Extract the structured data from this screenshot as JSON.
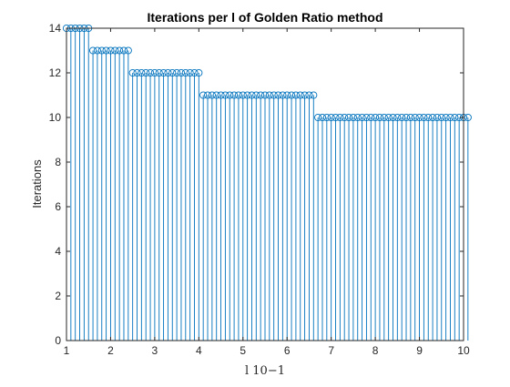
{
  "chart_data": {
    "type": "stem",
    "title": "Iterations per l of Golden Ratio method",
    "xlabel": "l 10−1",
    "ylabel": "Iterations",
    "xlim": [
      1,
      10
    ],
    "ylim": [
      0,
      14
    ],
    "xticks": [
      1,
      2,
      3,
      4,
      5,
      6,
      7,
      8,
      9,
      10
    ],
    "yticks": [
      0,
      2,
      4,
      6,
      8,
      10,
      12,
      14
    ],
    "x_start": 1.0,
    "x_step": 0.1,
    "values": [
      14,
      14,
      14,
      14,
      14,
      14,
      13,
      13,
      13,
      13,
      13,
      13,
      13,
      13,
      13,
      12,
      12,
      12,
      12,
      12,
      12,
      12,
      12,
      12,
      12,
      12,
      12,
      12,
      12,
      12,
      12,
      11,
      11,
      11,
      11,
      11,
      11,
      11,
      11,
      11,
      11,
      11,
      11,
      11,
      11,
      11,
      11,
      11,
      11,
      11,
      11,
      11,
      11,
      11,
      11,
      11,
      11,
      10,
      10,
      10,
      10,
      10,
      10,
      10,
      10,
      10,
      10,
      10,
      10,
      10,
      10,
      10,
      10,
      10,
      10,
      10,
      10,
      10,
      10,
      10,
      10,
      10,
      10,
      10,
      10,
      10,
      10,
      10,
      10,
      10,
      10,
      10
    ],
    "series_color": "#0072BD",
    "marker": "circle-open",
    "grid": false
  }
}
